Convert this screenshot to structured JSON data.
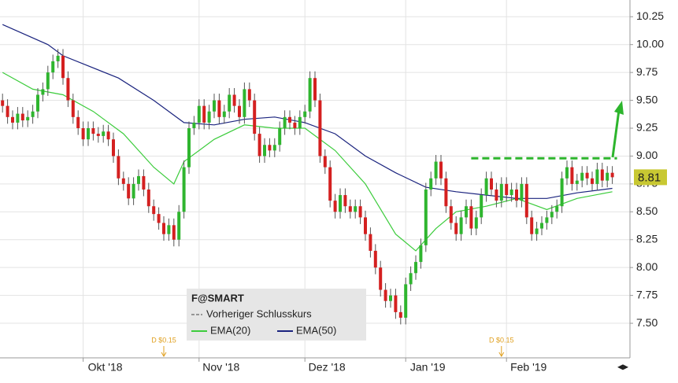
{
  "chart_data": {
    "type": "candlestick",
    "xlim": [
      -0.5,
      124.5
    ],
    "xticks": [
      {
        "value": 16,
        "label": "Okt '18"
      },
      {
        "value": 39,
        "label": "Nov '18"
      },
      {
        "value": 60,
        "label": "Dez '18"
      },
      {
        "value": 80,
        "label": "Jan '19"
      },
      {
        "value": 100,
        "label": "Feb '19"
      }
    ],
    "ylim": [
      7.19,
      10.4
    ],
    "yticks": [
      10.25,
      {
        "value": 10.0,
        "label": "10.00"
      },
      9.75,
      {
        "value": 9.5,
        "label": "9.50"
      },
      9.25,
      {
        "value": 9.0,
        "label": "9.00"
      },
      8.75,
      {
        "value": 8.5,
        "label": "8.50"
      },
      8.25,
      {
        "value": 8.0,
        "label": "8.00"
      },
      7.75,
      {
        "value": 7.5,
        "label": "7.50"
      }
    ],
    "grid": true,
    "up_color": "#2fb52f",
    "down_color": "#d42020",
    "open": [
      9.5,
      9.45,
      9.35,
      9.3,
      9.38,
      9.32,
      9.35,
      9.4,
      9.55,
      9.6,
      9.75,
      9.85,
      9.9,
      9.7,
      9.5,
      9.35,
      9.25,
      9.15,
      9.25,
      9.2,
      9.18,
      9.22,
      9.15,
      9.0,
      8.8,
      8.75,
      8.62,
      8.75,
      8.82,
      8.7,
      8.55,
      8.48,
      8.4,
      8.3,
      8.38,
      8.25,
      8.5,
      8.9,
      9.25,
      9.3,
      9.45,
      9.3,
      9.4,
      9.5,
      9.35,
      9.4,
      9.55,
      9.45,
      9.35,
      9.6,
      9.5,
      9.2,
      9.0,
      9.1,
      9.05,
      9.1,
      9.25,
      9.35,
      9.3,
      9.25,
      9.35,
      9.4,
      9.7,
      9.5,
      9.0,
      8.9,
      8.6,
      8.5,
      8.65,
      8.55,
      8.5,
      8.55,
      8.45,
      8.3,
      8.15,
      8.0,
      7.8,
      7.7,
      7.75,
      7.6,
      7.55,
      7.85,
      7.95,
      8.05,
      8.2,
      8.7,
      8.8,
      8.95,
      8.8,
      8.55,
      8.4,
      8.3,
      8.45,
      8.55,
      8.35,
      8.45,
      8.65,
      8.8,
      8.7,
      8.6,
      8.75,
      8.65,
      8.7,
      8.6,
      8.75,
      8.45,
      8.3,
      8.35,
      8.4,
      8.45,
      8.5,
      8.55,
      8.8,
      8.9,
      8.75,
      8.78,
      8.85,
      8.8,
      8.75,
      8.88,
      8.78,
      8.85
    ],
    "high": [
      9.56,
      9.51,
      9.41,
      9.44,
      9.44,
      9.41,
      9.46,
      9.61,
      9.66,
      9.81,
      9.91,
      9.96,
      9.96,
      9.76,
      9.56,
      9.41,
      9.31,
      9.31,
      9.31,
      9.26,
      9.28,
      9.28,
      9.21,
      9.06,
      8.86,
      8.81,
      8.81,
      8.88,
      8.88,
      8.76,
      8.61,
      8.54,
      8.46,
      8.44,
      8.44,
      8.56,
      8.96,
      9.31,
      9.36,
      9.51,
      9.51,
      9.46,
      9.56,
      9.56,
      9.46,
      9.61,
      9.61,
      9.51,
      9.66,
      9.66,
      9.56,
      9.26,
      9.16,
      9.16,
      9.16,
      9.31,
      9.41,
      9.41,
      9.36,
      9.41,
      9.46,
      9.76,
      9.76,
      9.56,
      9.06,
      8.96,
      8.66,
      8.71,
      8.71,
      8.61,
      8.61,
      8.61,
      8.51,
      8.36,
      8.21,
      8.06,
      7.86,
      7.81,
      7.81,
      7.66,
      7.91,
      8.01,
      8.11,
      8.26,
      8.76,
      8.86,
      9.01,
      9.01,
      8.86,
      8.61,
      8.46,
      8.51,
      8.61,
      8.61,
      8.51,
      8.71,
      8.86,
      8.86,
      8.76,
      8.81,
      8.81,
      8.76,
      8.76,
      8.81,
      8.81,
      8.51,
      8.41,
      8.46,
      8.51,
      8.56,
      8.61,
      8.86,
      8.96,
      8.96,
      8.84,
      8.91,
      8.91,
      8.86,
      8.94,
      8.94,
      8.91,
      8.91
    ],
    "low": [
      9.39,
      9.29,
      9.24,
      9.24,
      9.26,
      9.26,
      9.29,
      9.34,
      9.49,
      9.54,
      9.69,
      9.79,
      9.64,
      9.44,
      9.29,
      9.19,
      9.09,
      9.09,
      9.14,
      9.12,
      9.12,
      9.09,
      8.94,
      8.74,
      8.69,
      8.56,
      8.56,
      8.69,
      8.64,
      8.49,
      8.42,
      8.34,
      8.24,
      8.24,
      8.19,
      8.19,
      8.44,
      8.84,
      9.19,
      9.24,
      9.24,
      9.24,
      9.34,
      9.29,
      9.29,
      9.34,
      9.39,
      9.29,
      9.29,
      9.44,
      9.14,
      8.94,
      8.94,
      8.99,
      8.99,
      9.04,
      9.19,
      9.24,
      9.19,
      9.19,
      9.29,
      9.34,
      9.44,
      8.94,
      8.84,
      8.54,
      8.44,
      8.44,
      8.49,
      8.44,
      8.44,
      8.39,
      8.24,
      8.09,
      7.94,
      7.74,
      7.64,
      7.64,
      7.54,
      7.49,
      7.49,
      7.79,
      7.89,
      7.99,
      8.14,
      8.64,
      8.74,
      8.74,
      8.49,
      8.34,
      8.24,
      8.24,
      8.39,
      8.29,
      8.29,
      8.39,
      8.59,
      8.64,
      8.54,
      8.54,
      8.59,
      8.59,
      8.54,
      8.54,
      8.39,
      8.24,
      8.24,
      8.29,
      8.34,
      8.39,
      8.44,
      8.49,
      8.74,
      8.69,
      8.69,
      8.72,
      8.74,
      8.69,
      8.69,
      8.72,
      8.72,
      8.75
    ],
    "close": [
      9.45,
      9.35,
      9.3,
      9.38,
      9.32,
      9.35,
      9.4,
      9.55,
      9.6,
      9.75,
      9.85,
      9.9,
      9.7,
      9.5,
      9.35,
      9.25,
      9.15,
      9.25,
      9.2,
      9.18,
      9.22,
      9.15,
      9.0,
      8.8,
      8.75,
      8.62,
      8.75,
      8.82,
      8.7,
      8.55,
      8.48,
      8.4,
      8.3,
      8.38,
      8.25,
      8.5,
      8.9,
      9.25,
      9.3,
      9.45,
      9.3,
      9.4,
      9.5,
      9.35,
      9.4,
      9.55,
      9.45,
      9.35,
      9.6,
      9.5,
      9.2,
      9.0,
      9.1,
      9.05,
      9.1,
      9.25,
      9.35,
      9.3,
      9.25,
      9.35,
      9.4,
      9.7,
      9.5,
      9.0,
      8.9,
      8.6,
      8.5,
      8.65,
      8.55,
      8.5,
      8.55,
      8.45,
      8.3,
      8.15,
      8.0,
      7.8,
      7.7,
      7.75,
      7.6,
      7.55,
      7.85,
      7.95,
      8.05,
      8.2,
      8.7,
      8.8,
      8.95,
      8.8,
      8.55,
      8.4,
      8.3,
      8.45,
      8.55,
      8.35,
      8.45,
      8.65,
      8.8,
      8.7,
      8.6,
      8.75,
      8.65,
      8.7,
      8.6,
      8.75,
      8.45,
      8.3,
      8.35,
      8.4,
      8.45,
      8.5,
      8.55,
      8.8,
      8.9,
      8.75,
      8.78,
      8.85,
      8.8,
      8.75,
      8.88,
      8.78,
      8.85,
      8.81
    ],
    "series": [
      {
        "name": "EMA(20)",
        "color": "#3ccc3c",
        "x": [
          0,
          6,
          12,
          18,
          24,
          30,
          34,
          36,
          42,
          48,
          54,
          60,
          66,
          72,
          78,
          82,
          86,
          90,
          96,
          102,
          108,
          114,
          121
        ],
        "values": [
          9.75,
          9.6,
          9.55,
          9.4,
          9.2,
          8.9,
          8.75,
          8.95,
          9.15,
          9.28,
          9.25,
          9.25,
          9.05,
          8.75,
          8.3,
          8.15,
          8.35,
          8.5,
          8.55,
          8.62,
          8.52,
          8.62,
          8.68
        ]
      },
      {
        "name": "EMA(50)",
        "color": "#1a237e",
        "x": [
          0,
          9,
          12,
          23,
          30,
          36,
          42,
          48,
          54,
          60,
          66,
          72,
          78,
          84,
          90,
          96,
          102,
          108,
          114,
          121
        ],
        "values": [
          10.18,
          10.0,
          9.9,
          9.7,
          9.5,
          9.3,
          9.28,
          9.33,
          9.35,
          9.3,
          9.2,
          9.0,
          8.85,
          8.72,
          8.68,
          8.65,
          8.62,
          8.62,
          8.67,
          8.71
        ]
      }
    ],
    "legend_title": "F@SMART",
    "previous_close_label": "Vorheriger Schlusskurs",
    "resistance": {
      "value": 8.98,
      "x": [
        93,
        121
      ],
      "color": "#2db52d"
    },
    "annotations": [
      {
        "text": "D $0.15",
        "x": 32
      },
      {
        "text": "D $0.15",
        "x": 99
      }
    ]
  }
}
